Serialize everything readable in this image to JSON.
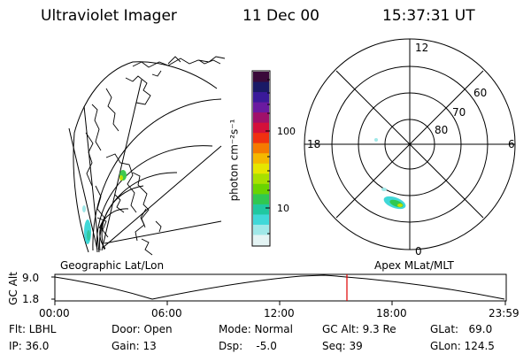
{
  "header": {
    "instrument": "Ultraviolet Imager",
    "date": "11 Dec 00",
    "time": "15:37:31 UT"
  },
  "colorbar": {
    "unit_label": "photon cm⁻²s⁻¹",
    "ticks": [
      "100",
      "10"
    ],
    "colors": [
      "#3a0a3a",
      "#1a1a66",
      "#3a1a9a",
      "#6a1aa0",
      "#a0106a",
      "#d4103a",
      "#f03010",
      "#f57a00",
      "#f5b800",
      "#e6e600",
      "#a8e000",
      "#6ad400",
      "#30c850",
      "#20c8a0",
      "#40d8d8",
      "#a0e8e8",
      "#e4f4f4"
    ]
  },
  "left_map": {
    "label": "Geographic Lat/Lon"
  },
  "polar_plot": {
    "label": "Apex MLat/MLT",
    "mlt_labels": [
      "12",
      "18",
      "6",
      "0"
    ],
    "lat_labels": [
      "60",
      "70",
      "80"
    ]
  },
  "altitude_plot": {
    "axis_label": "GC Alt",
    "y_ticks": [
      "9.0",
      "1.8"
    ],
    "x_ticks": [
      "00:00",
      "06:00",
      "12:00",
      "18:00",
      "23:59"
    ],
    "current_time_marker": "15:37"
  },
  "status": {
    "flt": "Flt: LBHL",
    "ip": "IP: 36.0",
    "door": "Door: Open",
    "gain": "Gain: 13",
    "mode": "Mode: Normal",
    "dsp": "Dsp:    -5.0",
    "gc_alt": "GC Alt: 9.3 Re",
    "seq": "Seq: 39",
    "glat": "GLat:   69.0",
    "glon": "GLon: 124.5"
  }
}
